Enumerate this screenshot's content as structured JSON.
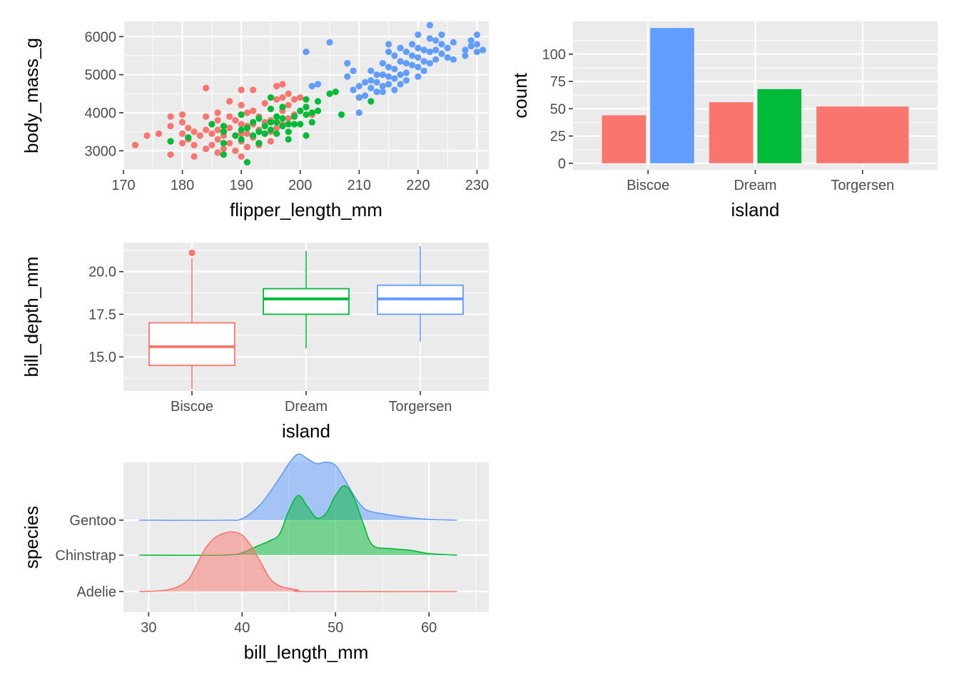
{
  "colors": {
    "panel_bg": "#ebebeb",
    "grid_major": "#ffffff",
    "Adelie": "#f8766d",
    "Chinstrap": "#00ba38",
    "Gentoo": "#619cff",
    "Biscoe": "#f8766d",
    "Dream": "#00ba38",
    "Torgersen": "#619cff"
  },
  "chart_data": [
    {
      "id": "scatter",
      "type": "scatter",
      "xlabel": "flipper_length_mm",
      "ylabel": "body_mass_g",
      "xlim": [
        170,
        232
      ],
      "ylim": [
        2500,
        6400
      ],
      "xticks": [
        170,
        180,
        190,
        200,
        210,
        220,
        230
      ],
      "yticks": [
        3000,
        4000,
        5000,
        6000
      ],
      "grid": true,
      "legend": "none",
      "series": [
        {
          "group": "Adelie",
          "points": [
            [
              172,
              3150
            ],
            [
              174,
              3400
            ],
            [
              176,
              3450
            ],
            [
              178,
              3900
            ],
            [
              178,
              3650
            ],
            [
              178,
              3250
            ],
            [
              178,
              2900
            ],
            [
              180,
              3950
            ],
            [
              180,
              3750
            ],
            [
              180,
              3450
            ],
            [
              180,
              3200
            ],
            [
              181,
              3600
            ],
            [
              181,
              3300
            ],
            [
              182,
              3500
            ],
            [
              182,
              3150
            ],
            [
              182,
              2850
            ],
            [
              183,
              3400
            ],
            [
              184,
              3900
            ],
            [
              184,
              3550
            ],
            [
              184,
              3050
            ],
            [
              184,
              4650
            ],
            [
              185,
              3700
            ],
            [
              185,
              3450
            ],
            [
              185,
              3150
            ],
            [
              186,
              4000
            ],
            [
              186,
              3800
            ],
            [
              186,
              3550
            ],
            [
              186,
              3300
            ],
            [
              186,
              2950
            ],
            [
              187,
              3650
            ],
            [
              187,
              3400
            ],
            [
              187,
              3050
            ],
            [
              188,
              4300
            ],
            [
              188,
              3900
            ],
            [
              188,
              3600
            ],
            [
              188,
              3200
            ],
            [
              189,
              3800
            ],
            [
              189,
              3400
            ],
            [
              189,
              3000
            ],
            [
              190,
              4600
            ],
            [
              190,
              4200
            ],
            [
              190,
              3950
            ],
            [
              190,
              3700
            ],
            [
              190,
              3450
            ],
            [
              190,
              3250
            ],
            [
              190,
              2850
            ],
            [
              191,
              4000
            ],
            [
              191,
              3650
            ],
            [
              191,
              3450
            ],
            [
              191,
              3100
            ],
            [
              192,
              4600
            ],
            [
              192,
              4050
            ],
            [
              192,
              3700
            ],
            [
              192,
              3350
            ],
            [
              193,
              3900
            ],
            [
              193,
              3550
            ],
            [
              193,
              3150
            ],
            [
              194,
              4250
            ],
            [
              194,
              3750
            ],
            [
              194,
              3450
            ],
            [
              195,
              4100
            ],
            [
              195,
              3800
            ],
            [
              195,
              3500
            ],
            [
              195,
              3250
            ],
            [
              196,
              4700
            ],
            [
              196,
              4350
            ],
            [
              196,
              3900
            ],
            [
              196,
              3600
            ],
            [
              197,
              4750
            ],
            [
              197,
              4400
            ],
            [
              197,
              4050
            ],
            [
              197,
              3700
            ],
            [
              198,
              4500
            ],
            [
              198,
              4200
            ],
            [
              198,
              3850
            ],
            [
              199,
              4350
            ],
            [
              199,
              3950
            ],
            [
              200,
              4400
            ],
            [
              200,
              4050
            ],
            [
              201,
              4150
            ],
            [
              202,
              3950
            ]
          ]
        },
        {
          "group": "Chinstrap",
          "points": [
            [
              178,
              3250
            ],
            [
              181,
              3350
            ],
            [
              185,
              3700
            ],
            [
              187,
              3500
            ],
            [
              187,
              3200
            ],
            [
              187,
              2900
            ],
            [
              187,
              3650
            ],
            [
              189,
              3400
            ],
            [
              190,
              3550
            ],
            [
              190,
              3300
            ],
            [
              190,
              3950
            ],
            [
              191,
              2700
            ],
            [
              191,
              3600
            ],
            [
              192,
              3400
            ],
            [
              192,
              3750
            ],
            [
              193,
              3850
            ],
            [
              193,
              3500
            ],
            [
              193,
              3200
            ],
            [
              194,
              3650
            ],
            [
              194,
              3450
            ],
            [
              195,
              3750
            ],
            [
              195,
              4100
            ],
            [
              195,
              4400
            ],
            [
              195,
              3550
            ],
            [
              196,
              3450
            ],
            [
              196,
              3750
            ],
            [
              196,
              3900
            ],
            [
              197,
              3650
            ],
            [
              197,
              3850
            ],
            [
              197,
              4150
            ],
            [
              198,
              3700
            ],
            [
              198,
              3500
            ],
            [
              198,
              3300
            ],
            [
              199,
              3900
            ],
            [
              199,
              3700
            ],
            [
              200,
              4050
            ],
            [
              200,
              3700
            ],
            [
              201,
              3950
            ],
            [
              201,
              3400
            ],
            [
              201,
              4150
            ],
            [
              201,
              4350
            ],
            [
              202,
              4000
            ],
            [
              202,
              3750
            ],
            [
              203,
              4050
            ],
            [
              203,
              4300
            ],
            [
              205,
              4500
            ],
            [
              206,
              4550
            ],
            [
              207,
              3950
            ],
            [
              210,
              4400
            ],
            [
              212,
              4300
            ]
          ]
        },
        {
          "group": "Gentoo",
          "points": [
            [
              203,
              4750
            ],
            [
              208,
              5300
            ],
            [
              208,
              4950
            ],
            [
              209,
              4600
            ],
            [
              209,
              5100
            ],
            [
              210,
              4700
            ],
            [
              210,
              4400
            ],
            [
              210,
              4000
            ],
            [
              211,
              4800
            ],
            [
              211,
              4450
            ],
            [
              212,
              5100
            ],
            [
              212,
              4850
            ],
            [
              212,
              4650
            ],
            [
              213,
              5000
            ],
            [
              213,
              4800
            ],
            [
              213,
              4550
            ],
            [
              214,
              5300
            ],
            [
              214,
              5000
            ],
            [
              214,
              4700
            ],
            [
              214,
              4550
            ],
            [
              215,
              5600
            ],
            [
              215,
              5200
            ],
            [
              215,
              4950
            ],
            [
              215,
              4750
            ],
            [
              215,
              5800
            ],
            [
              216,
              5500
            ],
            [
              216,
              5150
            ],
            [
              216,
              4900
            ],
            [
              216,
              4600
            ],
            [
              217,
              5700
            ],
            [
              217,
              5350
            ],
            [
              217,
              5000
            ],
            [
              217,
              4750
            ],
            [
              218,
              5600
            ],
            [
              218,
              5300
            ],
            [
              218,
              5050
            ],
            [
              218,
              4850
            ],
            [
              219,
              5800
            ],
            [
              219,
              5500
            ],
            [
              219,
              5250
            ],
            [
              220,
              6050
            ],
            [
              220,
              5700
            ],
            [
              220,
              5450
            ],
            [
              220,
              5200
            ],
            [
              220,
              4950
            ],
            [
              221,
              5650
            ],
            [
              221,
              5350
            ],
            [
              221,
              5100
            ],
            [
              222,
              6300
            ],
            [
              222,
              5950
            ],
            [
              222,
              5600
            ],
            [
              222,
              5300
            ],
            [
              223,
              5900
            ],
            [
              223,
              5650
            ],
            [
              223,
              5400
            ],
            [
              224,
              6050
            ],
            [
              224,
              5800
            ],
            [
              224,
              5550
            ],
            [
              225,
              5700
            ],
            [
              225,
              5450
            ],
            [
              226,
              5400
            ],
            [
              226,
              5850
            ],
            [
              228,
              5650
            ],
            [
              228,
              5500
            ],
            [
              229,
              5900
            ],
            [
              229,
              5750
            ],
            [
              230,
              6050
            ],
            [
              230,
              5800
            ],
            [
              230,
              5600
            ],
            [
              231,
              5650
            ],
            [
              201,
              5600
            ],
            [
              205,
              5850
            ],
            [
              202,
              4700
            ]
          ]
        }
      ]
    },
    {
      "id": "bar",
      "type": "bar",
      "xlabel": "island",
      "ylabel": "count",
      "categories": [
        "Biscoe",
        "Dream",
        "Torgersen"
      ],
      "ylim": [
        0,
        124
      ],
      "yticks": [
        0,
        25,
        50,
        75,
        100
      ],
      "grid": true,
      "legend": "none",
      "series": [
        {
          "group": "Adelie",
          "values": [
            44,
            56,
            52
          ]
        },
        {
          "group": "Chinstrap",
          "values": [
            0,
            68,
            0
          ]
        },
        {
          "group": "Gentoo",
          "values": [
            124,
            0,
            0
          ]
        }
      ]
    },
    {
      "id": "box",
      "type": "box",
      "xlabel": "island",
      "ylabel": "bill_depth_mm",
      "categories": [
        "Biscoe",
        "Dream",
        "Torgersen"
      ],
      "ylim": [
        13.0,
        21.7
      ],
      "yticks": [
        15.0,
        17.5,
        20.0
      ],
      "ytick_labels": [
        "15.0",
        "17.5",
        "20.0"
      ],
      "grid": true,
      "legend": "none",
      "boxes": [
        {
          "category": "Biscoe",
          "lower": 13.1,
          "q1": 14.5,
          "median": 15.6,
          "q3": 17.0,
          "upper": 20.8,
          "outliers": [
            21.1
          ]
        },
        {
          "category": "Dream",
          "lower": 15.5,
          "q1": 17.5,
          "median": 18.4,
          "q3": 19.0,
          "upper": 21.2,
          "outliers": []
        },
        {
          "category": "Torgersen",
          "lower": 15.9,
          "q1": 17.5,
          "median": 18.4,
          "q3": 19.2,
          "upper": 21.5,
          "outliers": []
        }
      ]
    },
    {
      "id": "ridges",
      "type": "area",
      "subtype": "ridgeline",
      "xlabel": "bill_length_mm",
      "ylabel": "species",
      "xlim": [
        27.3,
        66.4
      ],
      "xticks": [
        30,
        40,
        50,
        60
      ],
      "categories": [
        "Adelie",
        "Chinstrap",
        "Gentoo"
      ],
      "grid": true,
      "legend": "none",
      "series": [
        {
          "group": "Gentoo",
          "x": [
            29,
            38,
            40,
            42,
            44,
            45,
            46,
            47,
            48,
            49,
            50,
            51,
            52,
            53,
            54,
            55,
            56,
            58,
            60,
            63
          ],
          "density": [
            0,
            0,
            0.02,
            0.2,
            0.52,
            0.7,
            0.82,
            0.76,
            0.7,
            0.72,
            0.68,
            0.5,
            0.3,
            0.15,
            0.1,
            0.08,
            0.06,
            0.03,
            0.01,
            0
          ]
        },
        {
          "group": "Chinstrap",
          "x": [
            29,
            38,
            40,
            41,
            42,
            43,
            44,
            45,
            46,
            47,
            48,
            49,
            50,
            51,
            52,
            53,
            54,
            56,
            58,
            60,
            63
          ],
          "density": [
            0,
            0,
            0.03,
            0.08,
            0.13,
            0.18,
            0.26,
            0.55,
            0.74,
            0.6,
            0.46,
            0.52,
            0.74,
            0.86,
            0.7,
            0.38,
            0.12,
            0.08,
            0.06,
            0.02,
            0
          ]
        },
        {
          "group": "Adelie",
          "x": [
            29,
            32,
            34,
            35,
            36,
            37,
            38,
            39,
            40,
            41,
            42,
            43,
            44,
            45,
            46,
            47,
            63
          ],
          "density": [
            0,
            0.02,
            0.12,
            0.3,
            0.52,
            0.66,
            0.72,
            0.74,
            0.7,
            0.56,
            0.36,
            0.16,
            0.07,
            0.04,
            0.02,
            0,
            0
          ]
        }
      ]
    }
  ]
}
